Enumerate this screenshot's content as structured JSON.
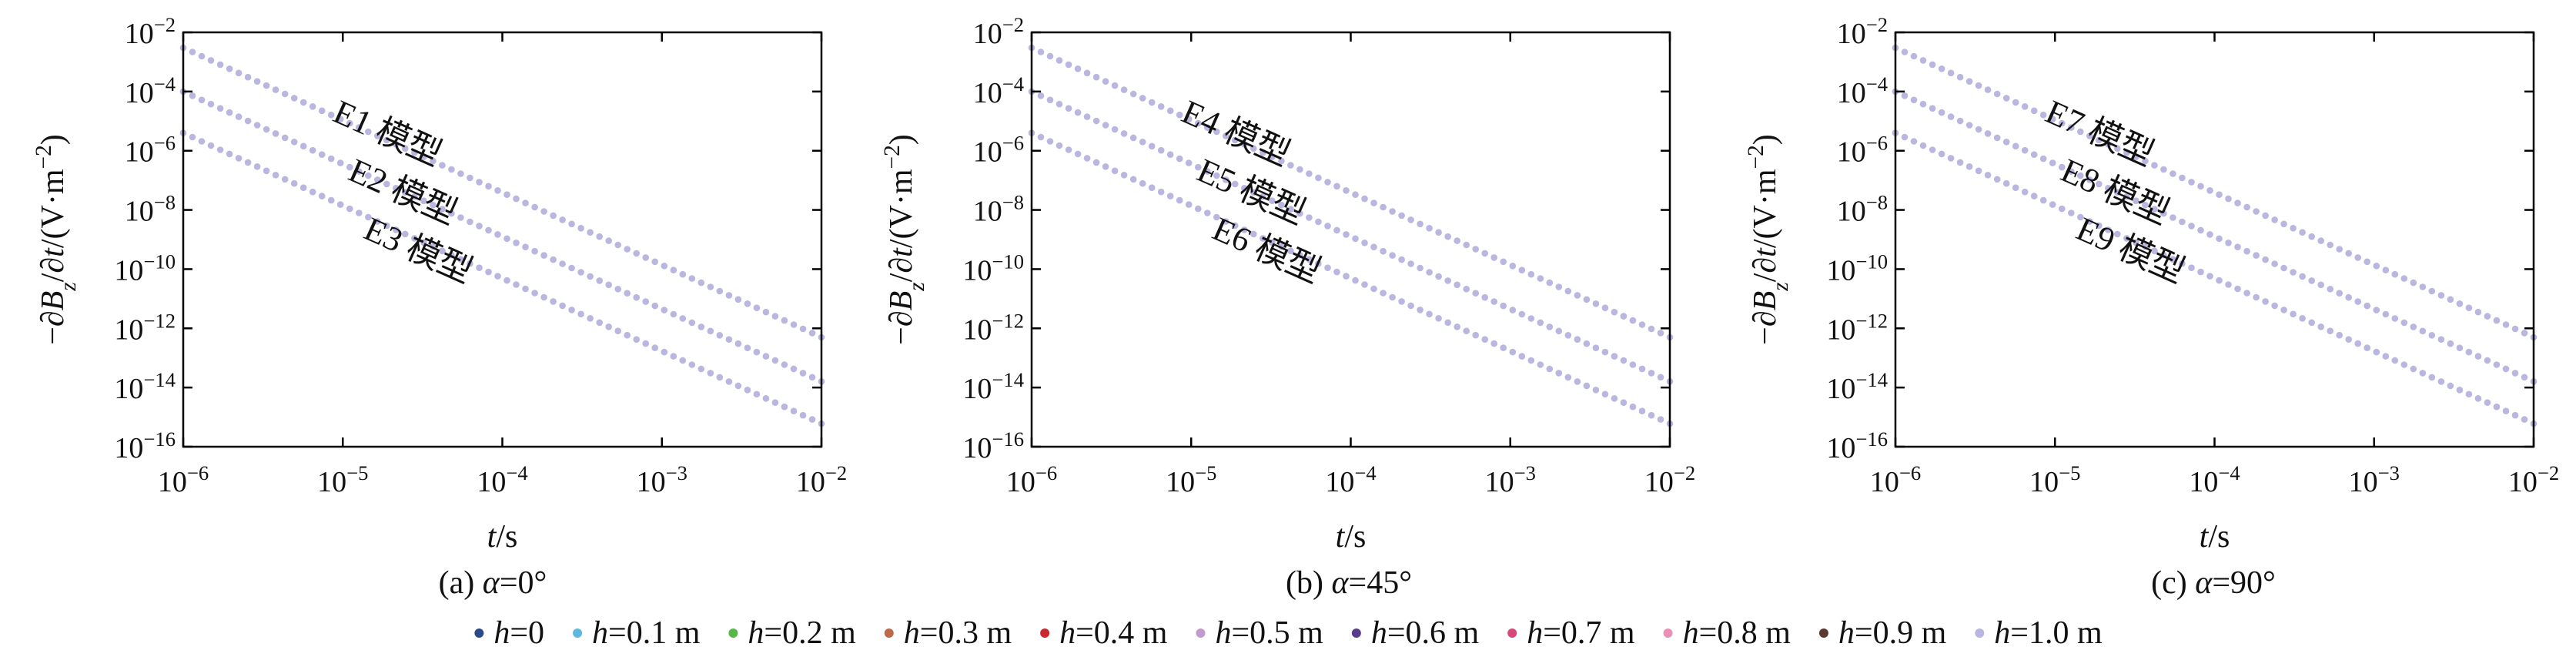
{
  "chart_data": [
    {
      "type": "scatter",
      "caption": "(a) α=0°",
      "xlabel": "t/s",
      "ylabel": "−∂Bz/∂t/(V·m−2)",
      "xscale": "log",
      "yscale": "log",
      "xlim": [
        1e-06,
        0.01
      ],
      "ylim": [
        1e-16,
        0.01
      ],
      "x_ticks": [
        1e-06,
        1e-05,
        0.0001,
        0.001,
        0.01
      ],
      "y_ticks": [
        1e-16,
        1e-14,
        1e-12,
        1e-10,
        1e-08,
        1e-06,
        0.0001,
        0.01
      ],
      "annotations": [
        "E1 模型",
        "E2 模型",
        "E3 模型"
      ],
      "curves": [
        {
          "label": "E1 模型",
          "x": [
            1e-06,
            0.01
          ],
          "y": [
            0.003,
            5e-13
          ]
        },
        {
          "label": "E2 模型",
          "x": [
            1e-06,
            0.01
          ],
          "y": [
            0.0001,
            1.6e-14
          ]
        },
        {
          "label": "E3 模型",
          "x": [
            1e-06,
            0.01
          ],
          "y": [
            4e-06,
            6e-16
          ]
        }
      ]
    },
    {
      "type": "scatter",
      "caption": "(b) α=45°",
      "xlabel": "t/s",
      "ylabel": "−∂Bz/∂t/(V·m−2)",
      "xscale": "log",
      "yscale": "log",
      "xlim": [
        1e-06,
        0.01
      ],
      "ylim": [
        1e-16,
        0.01
      ],
      "x_ticks": [
        1e-06,
        1e-05,
        0.0001,
        0.001,
        0.01
      ],
      "y_ticks": [
        1e-16,
        1e-14,
        1e-12,
        1e-10,
        1e-08,
        1e-06,
        0.0001,
        0.01
      ],
      "annotations": [
        "E4 模型",
        "E5 模型",
        "E6 模型"
      ],
      "curves": [
        {
          "label": "E4 模型",
          "x": [
            1e-06,
            0.01
          ],
          "y": [
            0.003,
            5e-13
          ]
        },
        {
          "label": "E5 模型",
          "x": [
            1e-06,
            0.01
          ],
          "y": [
            0.0001,
            1.6e-14
          ]
        },
        {
          "label": "E6 模型",
          "x": [
            1e-06,
            0.01
          ],
          "y": [
            4e-06,
            6e-16
          ]
        }
      ]
    },
    {
      "type": "scatter",
      "caption": "(c) α=90°",
      "xlabel": "t/s",
      "ylabel": "−∂Bz/∂t/(V·m−2)",
      "xscale": "log",
      "yscale": "log",
      "xlim": [
        1e-06,
        0.01
      ],
      "ylim": [
        1e-16,
        0.01
      ],
      "x_ticks": [
        1e-06,
        1e-05,
        0.0001,
        0.001,
        0.01
      ],
      "y_ticks": [
        1e-16,
        1e-14,
        1e-12,
        1e-10,
        1e-08,
        1e-06,
        0.0001,
        0.01
      ],
      "annotations": [
        "E7 模型",
        "E8 模型",
        "E9 模型"
      ],
      "curves": [
        {
          "label": "E7 模型",
          "x": [
            1e-06,
            0.01
          ],
          "y": [
            0.003,
            5e-13
          ]
        },
        {
          "label": "E8 模型",
          "x": [
            1e-06,
            0.01
          ],
          "y": [
            0.0001,
            1.6e-14
          ]
        },
        {
          "label": "E9 模型",
          "x": [
            1e-06,
            0.01
          ],
          "y": [
            4e-06,
            6e-16
          ]
        }
      ]
    }
  ],
  "legend": {
    "placement": "bottom",
    "entries": [
      {
        "var": "h",
        "text": "=0",
        "color": "#2b4a8c"
      },
      {
        "var": "h",
        "text": "=0.1 m",
        "color": "#5bb8e0"
      },
      {
        "var": "h",
        "text": "=0.2 m",
        "color": "#55b848"
      },
      {
        "var": "h",
        "text": "=0.3 m",
        "color": "#c0694a"
      },
      {
        "var": "h",
        "text": "=0.4 m",
        "color": "#c8282e"
      },
      {
        "var": "h",
        "text": "=0.5 m",
        "color": "#c39acd"
      },
      {
        "var": "h",
        "text": "=0.6 m",
        "color": "#5a3c8c"
      },
      {
        "var": "h",
        "text": "=0.7 m",
        "color": "#d8487a"
      },
      {
        "var": "h",
        "text": "=0.8 m",
        "color": "#eb8fb4"
      },
      {
        "var": "h",
        "text": "=0.9 m",
        "color": "#5a3a2e"
      },
      {
        "var": "h",
        "text": "=1.0 m",
        "color": "#b9b6df"
      }
    ]
  },
  "point_color": "#b9b6df"
}
